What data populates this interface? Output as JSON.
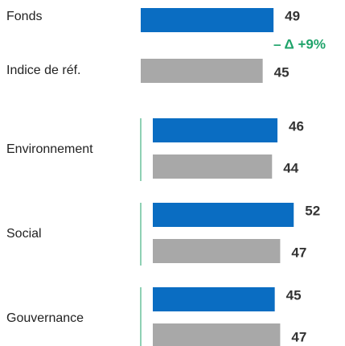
{
  "chart_data": {
    "type": "bar",
    "categories": [
      null,
      "Environnement",
      "Social",
      "Gouvernance"
    ],
    "series": [
      {
        "name": "Fonds",
        "color": "#0a6dc2",
        "values": [
          49,
          46,
          52,
          45
        ]
      },
      {
        "name": "Indice de réf.",
        "color": "#a8a8a8",
        "values": [
          45,
          44,
          47,
          47
        ]
      }
    ],
    "annotation": "– Δ +9%",
    "annotation_color": "#1fa36a"
  }
}
